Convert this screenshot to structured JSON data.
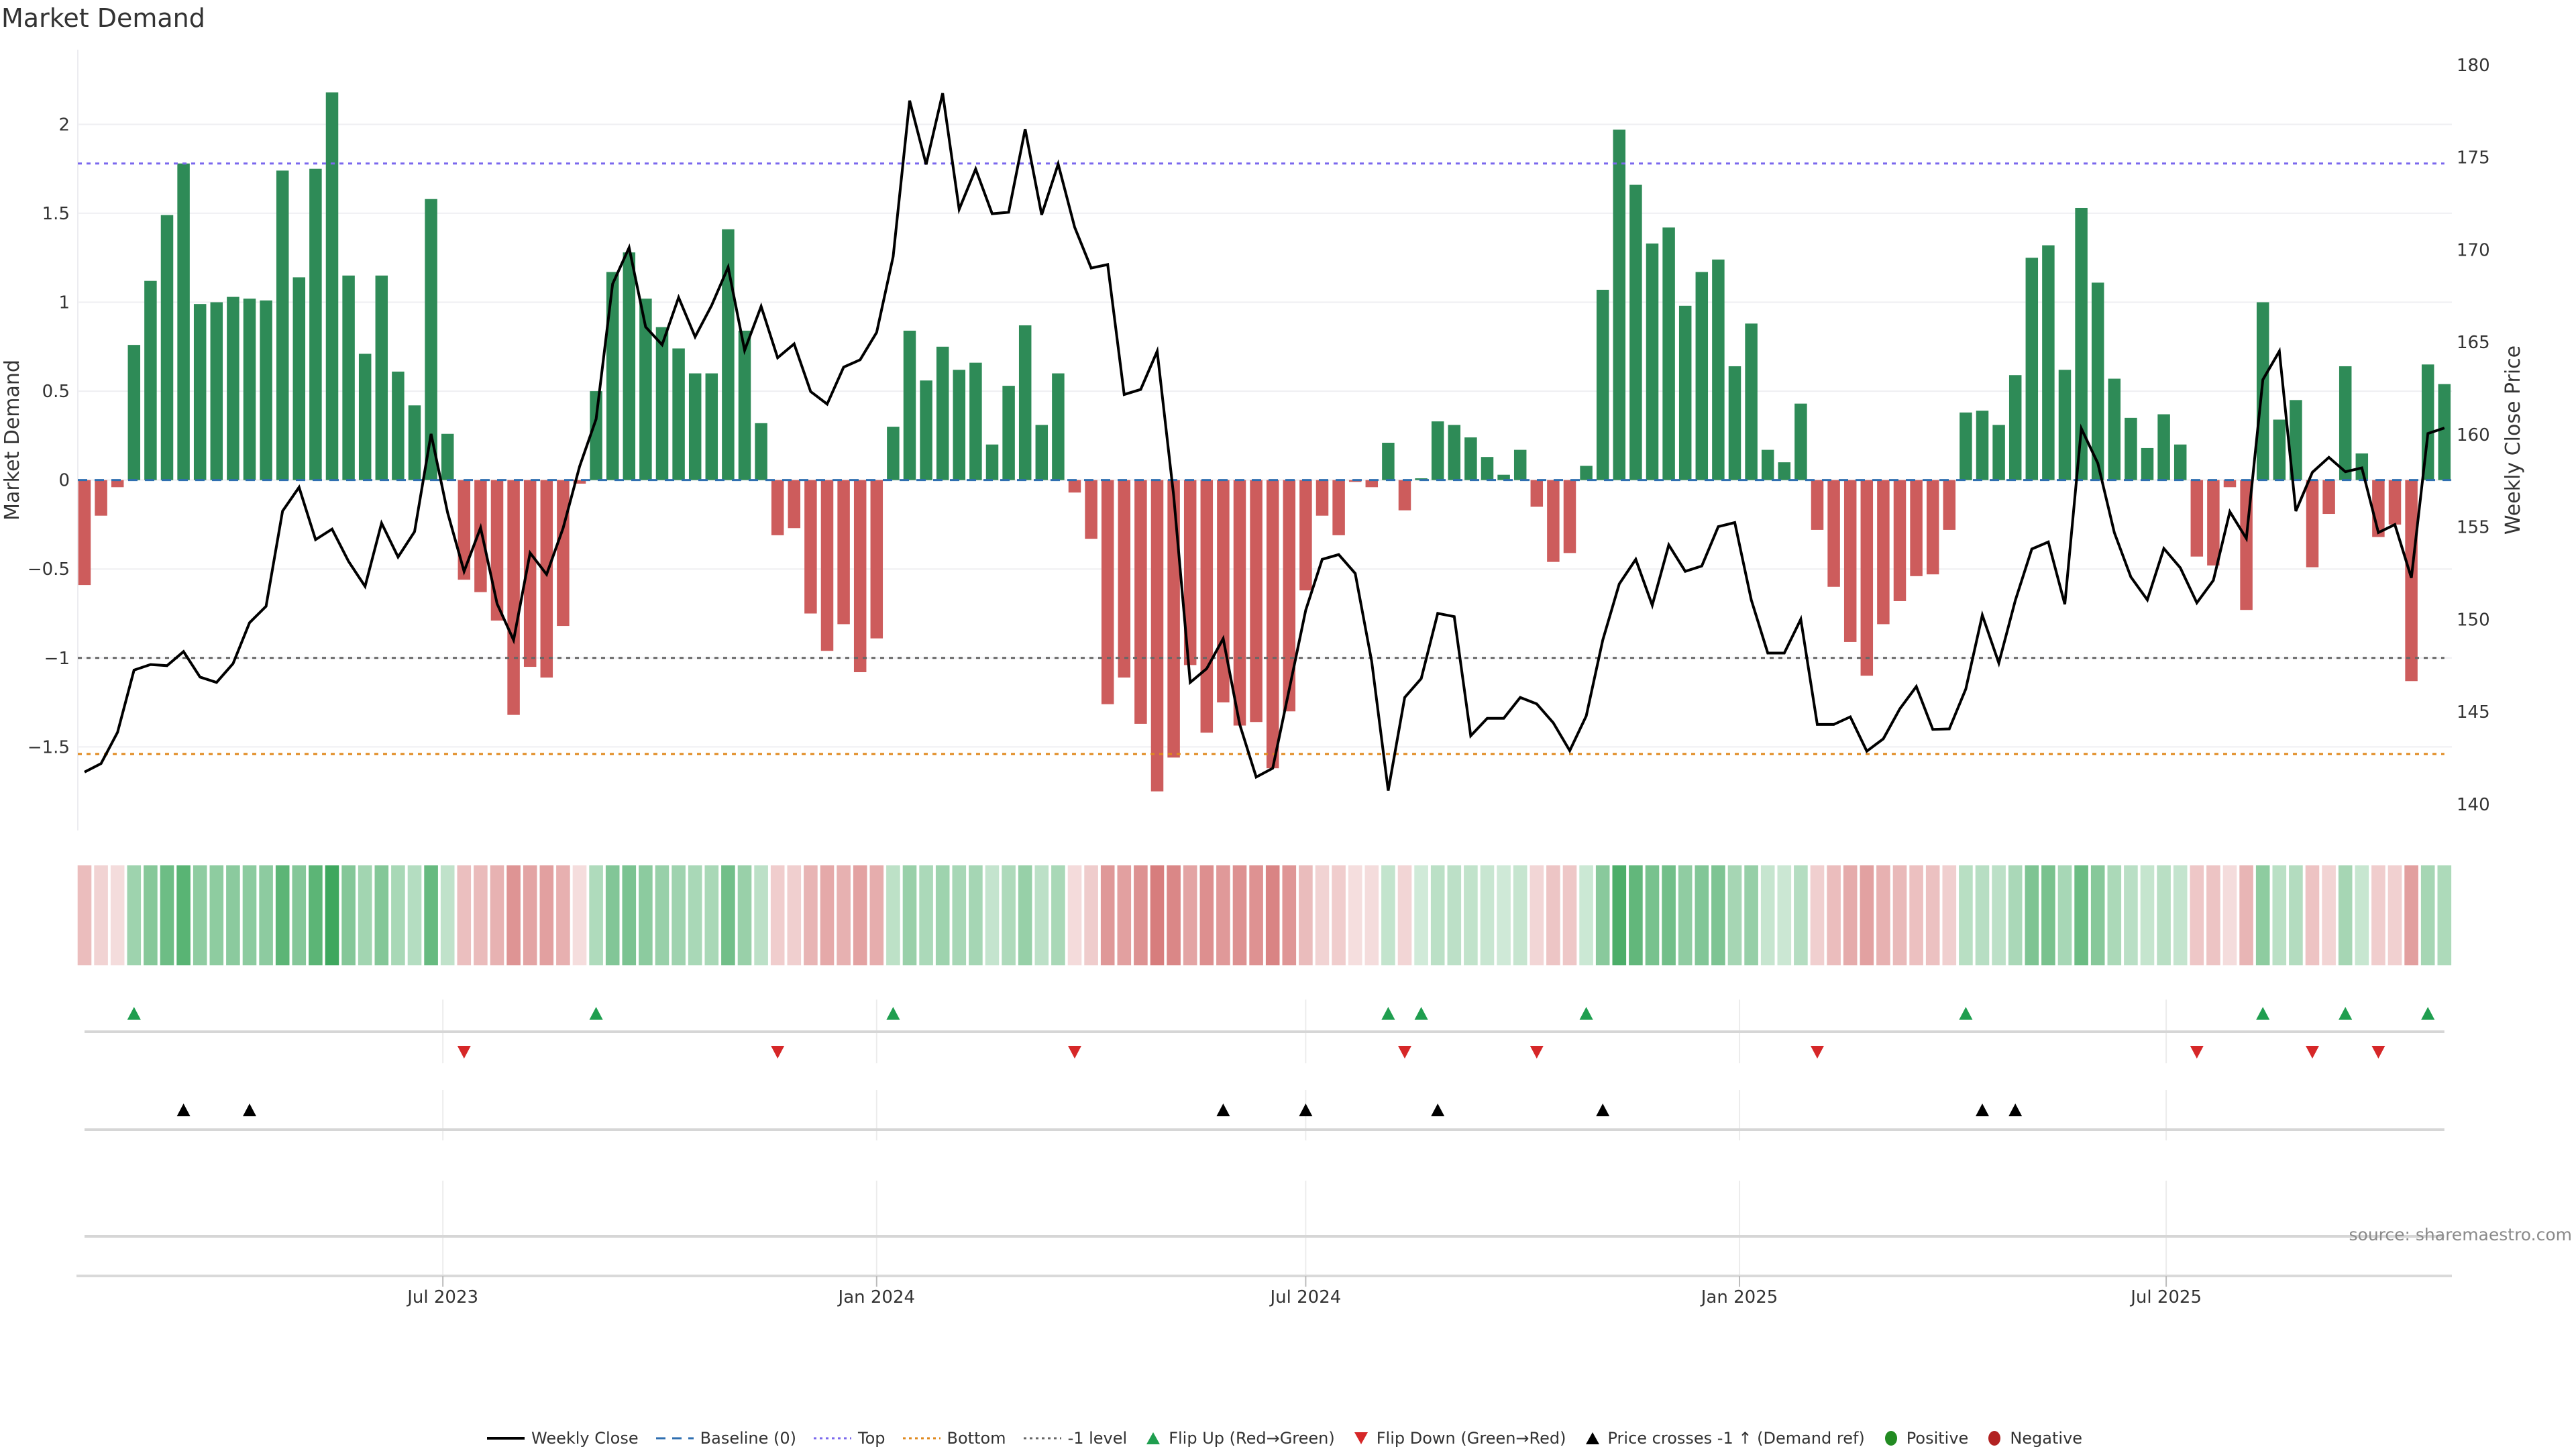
{
  "source": "source: sharemaestro.com",
  "colors": {
    "positive_bar": "#2e8b57",
    "negative_bar": "#cd5c5c",
    "heat_positive": "#2ea050",
    "heat_negative": "#cd5c5c",
    "price_line": "#000000",
    "baseline": "#2f6fb0",
    "top_line": "#7b68ee",
    "bottom_line": "#e0891e",
    "minus1_line": "#666666",
    "flip_up": "#1f9e4f",
    "flip_down": "#d62728",
    "price_cross": "#000000",
    "positive_dot": "#228b22",
    "negative_dot": "#b22222",
    "grid": "#efeff2",
    "row_line": "#d6d6d6"
  },
  "legend": [
    {
      "label": "Weekly Close",
      "swatch": "line",
      "color": "#000000"
    },
    {
      "label": "Baseline (0)",
      "swatch": "dashed",
      "color": "#2f6fb0"
    },
    {
      "label": "Top",
      "swatch": "dotted",
      "color": "#7b68ee"
    },
    {
      "label": "Bottom",
      "swatch": "dotted",
      "color": "#e0891e"
    },
    {
      "label": "-1 level",
      "swatch": "dotted",
      "color": "#666666"
    },
    {
      "label": "Flip Up (Red→Green)",
      "swatch": "triangle-up",
      "color": "#1f9e4f"
    },
    {
      "label": "Flip Down (Green→Red)",
      "swatch": "triangle-down",
      "color": "#d62728"
    },
    {
      "label": "Price crosses -1 ↑ (Demand ref)",
      "swatch": "triangle-up",
      "color": "#000000"
    },
    {
      "label": "Positive",
      "swatch": "circle",
      "color": "#228b22"
    },
    {
      "label": "Negative",
      "swatch": "circle",
      "color": "#b22222"
    }
  ],
  "chart_data": {
    "type": "bar",
    "title": "Market Demand",
    "xlabel": "",
    "ylabel": "Market Demand",
    "y2label": "Weekly Close Price",
    "ylim": [
      -1.97,
      2.42
    ],
    "y2lim": [
      138.58,
      180.83
    ],
    "yticks": [
      -1.5,
      -1,
      -0.5,
      0,
      0.5,
      1,
      1.5,
      2
    ],
    "ytick_labels": [
      "−1.5",
      "−1",
      "−0.5",
      "0",
      "0.5",
      "1",
      "1.5",
      "2"
    ],
    "y2ticks": [
      140,
      145,
      150,
      155,
      160,
      165,
      170,
      175,
      180
    ],
    "y2tick_labels": [
      "140",
      "145",
      "150",
      "155",
      "160",
      "165",
      "170",
      "175",
      "180"
    ],
    "grid": true,
    "legend_position": "bottom-center",
    "x_start": "2023-01-30",
    "x_step_days": 7,
    "xticks": [
      {
        "date": "2023-07-01",
        "label": "Jul 2023"
      },
      {
        "date": "2024-01-01",
        "label": "Jan 2024"
      },
      {
        "date": "2024-07-01",
        "label": "Jul 2024"
      },
      {
        "date": "2025-01-01",
        "label": "Jan 2025"
      },
      {
        "date": "2025-07-01",
        "label": "Jul 2025"
      }
    ],
    "ref_lines": {
      "baseline": 0,
      "top": 1.78,
      "bottom": -1.54,
      "minus1": -1
    },
    "demand": [
      -0.59,
      -0.2,
      -0.04,
      0.76,
      1.12,
      1.49,
      1.78,
      0.99,
      1.0,
      1.03,
      1.02,
      1.01,
      1.74,
      1.14,
      1.75,
      2.18,
      1.15,
      0.71,
      1.15,
      0.61,
      0.42,
      1.58,
      0.26,
      -0.56,
      -0.63,
      -0.79,
      -1.32,
      -1.05,
      -1.11,
      -0.82,
      -0.02,
      0.5,
      1.17,
      1.28,
      1.02,
      0.86,
      0.74,
      0.6,
      0.6,
      1.41,
      0.84,
      0.32,
      -0.31,
      -0.27,
      -0.75,
      -0.96,
      -0.81,
      -1.08,
      -0.89,
      0.3,
      0.84,
      0.56,
      0.75,
      0.62,
      0.66,
      0.2,
      0.53,
      0.87,
      0.31,
      0.6,
      -0.07,
      -0.33,
      -1.26,
      -1.11,
      -1.37,
      -1.75,
      -1.56,
      -1.04,
      -1.42,
      -1.25,
      -1.38,
      -1.36,
      -1.62,
      -1.3,
      -0.62,
      -0.2,
      -0.31,
      -0.01,
      -0.04,
      0.21,
      -0.17,
      0.01,
      0.33,
      0.31,
      0.24,
      0.13,
      0.03,
      0.17,
      -0.15,
      -0.46,
      -0.41,
      0.08,
      1.07,
      1.97,
      1.66,
      1.33,
      1.42,
      0.98,
      1.17,
      1.24,
      0.64,
      0.88,
      0.17,
      0.1,
      0.43,
      -0.28,
      -0.6,
      -0.91,
      -1.1,
      -0.81,
      -0.68,
      -0.54,
      -0.53,
      -0.28,
      0.38,
      0.39,
      0.31,
      0.59,
      1.25,
      1.32,
      0.62,
      1.53,
      1.11,
      0.57,
      0.35,
      0.18,
      0.37,
      0.2,
      -0.43,
      -0.48,
      -0.04,
      -0.73,
      1.0,
      0.34,
      0.45,
      -0.49,
      -0.19,
      0.64,
      0.15,
      -0.32,
      -0.25,
      -1.13,
      0.65,
      0.54
    ],
    "close": [
      141.74,
      142.2,
      143.89,
      147.26,
      147.56,
      147.5,
      148.26,
      146.88,
      146.59,
      147.61,
      149.82,
      150.71,
      155.86,
      157.15,
      154.32,
      154.89,
      153.14,
      151.79,
      155.21,
      153.38,
      154.75,
      160.04,
      155.78,
      152.6,
      154.97,
      150.85,
      148.88,
      153.6,
      152.44,
      154.94,
      158.28,
      160.84,
      168.15,
      170.12,
      165.83,
      164.86,
      167.42,
      165.29,
      166.99,
      169.06,
      164.56,
      166.94,
      164.16,
      164.91,
      162.33,
      161.65,
      163.65,
      164.05,
      165.53,
      169.63,
      178.07,
      174.62,
      178.47,
      172.19,
      174.37,
      171.95,
      172.03,
      176.53,
      171.89,
      174.64,
      171.22,
      169.01,
      169.2,
      162.17,
      162.44,
      164.51,
      156.69,
      146.59,
      147.34,
      148.96,
      144.32,
      141.47,
      141.95,
      146.21,
      150.5,
      153.25,
      153.51,
      152.49,
      147.72,
      140.74,
      145.78,
      146.8,
      150.33,
      150.15,
      143.7,
      144.65,
      144.65,
      145.78,
      145.43,
      144.41,
      142.9,
      144.78,
      148.88,
      151.92,
      153.25,
      150.77,
      154.03,
      152.6,
      152.89,
      155.02,
      155.24,
      151.06,
      148.18,
      148.18,
      150.01,
      144.32,
      144.32,
      144.73,
      142.87,
      143.54,
      145.16,
      146.37,
      144.05,
      144.08,
      146.24,
      150.23,
      147.64,
      151.03,
      153.81,
      154.19,
      150.82,
      160.33,
      158.45,
      154.7,
      152.3,
      151.06,
      153.84,
      152.79,
      150.9,
      152.11,
      155.83,
      154.38,
      162.97,
      164.51,
      155.86,
      157.96,
      158.77,
      157.99,
      158.2,
      154.7,
      155.13,
      152.25,
      160.06,
      160.36
    ],
    "flip_up_weeks": [
      3,
      31,
      49,
      79,
      81,
      91,
      114,
      132,
      137,
      142
    ],
    "flip_down_weeks": [
      23,
      42,
      60,
      80,
      88,
      105,
      128,
      135,
      139
    ],
    "price_cross_weeks": [
      6,
      10,
      69,
      74,
      82,
      92,
      115,
      117
    ]
  }
}
